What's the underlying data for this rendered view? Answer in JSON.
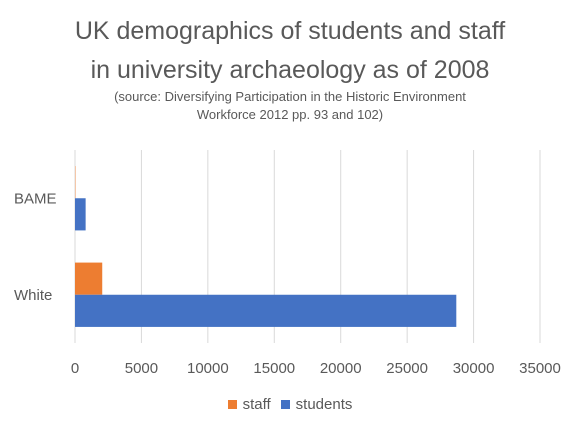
{
  "chart_data": {
    "type": "bar",
    "orientation": "horizontal",
    "title_line1": "UK demographics of students and staff",
    "title_line2": "in university archaeology as of 2008",
    "subtitle_line1": "(source: Diversifying Participation in the Historic Environment",
    "subtitle_line2": "Workforce 2012 pp. 93 and 102)",
    "categories": [
      "BAME",
      "White"
    ],
    "series": [
      {
        "name": "staff",
        "color": "#ED7D31",
        "values": [
          30,
          2050
        ]
      },
      {
        "name": "students",
        "color": "#4472C4",
        "values": [
          800,
          28700
        ]
      }
    ],
    "xlim": [
      0,
      35000
    ],
    "xticks": [
      "0",
      "5000",
      "10000",
      "15000",
      "20000",
      "25000",
      "30000",
      "35000"
    ],
    "grid": true,
    "legend_position": "bottom"
  }
}
